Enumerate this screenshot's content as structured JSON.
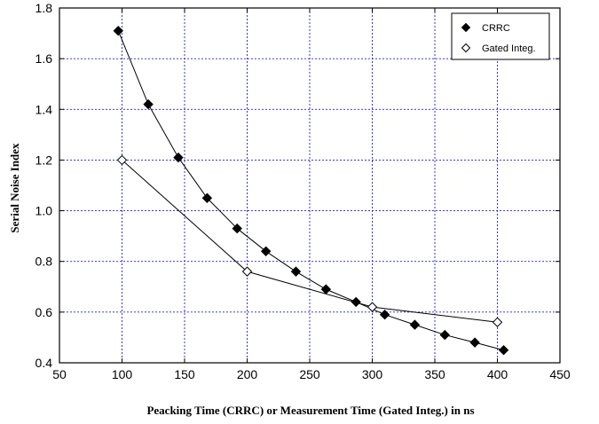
{
  "chart_data": {
    "type": "line",
    "title": "",
    "xlabel": "Peacking Time (CRRC) or Measurement Time (Gated Integ.) in ns",
    "ylabel": "Serial Noise Index",
    "xlim": [
      50,
      450
    ],
    "ylim": [
      0.4,
      1.8
    ],
    "xticks": [
      "50",
      "100",
      "150",
      "200",
      "250",
      "300",
      "350",
      "400",
      "450"
    ],
    "yticks": [
      "0.4",
      "0.6",
      "0.8",
      "1.0",
      "1.2",
      "1.4",
      "1.6",
      "1.8"
    ],
    "xtick_values": [
      50,
      100,
      150,
      200,
      250,
      300,
      350,
      400,
      450
    ],
    "ytick_values": [
      0.4,
      0.6,
      0.8,
      1.0,
      1.2,
      1.4,
      1.6,
      1.8
    ],
    "grid": true,
    "legend_position": "top-right",
    "series": [
      {
        "name": "CRRC",
        "marker": "filled-diamond",
        "color": "#000000",
        "x": [
          97,
          121,
          145,
          168,
          192,
          215,
          239,
          263,
          287,
          310,
          334,
          358,
          382,
          405
        ],
        "y": [
          1.71,
          1.42,
          1.21,
          1.05,
          0.93,
          0.84,
          0.76,
          0.69,
          0.64,
          0.59,
          0.55,
          0.51,
          0.48,
          0.45
        ]
      },
      {
        "name": "Gated Integ.",
        "marker": "open-diamond",
        "color": "#000000",
        "x": [
          100,
          200,
          300,
          400
        ],
        "y": [
          1.2,
          0.76,
          0.62,
          0.56
        ]
      }
    ]
  }
}
